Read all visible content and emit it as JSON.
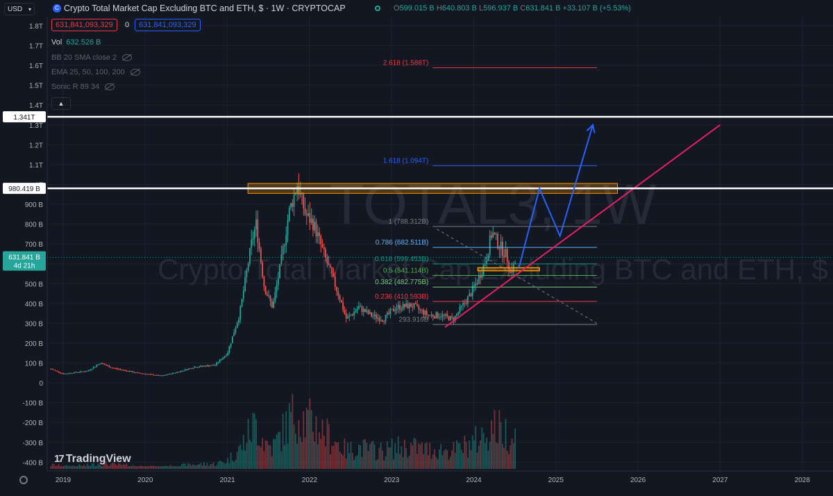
{
  "header": {
    "currency": "USD",
    "symbol_icon": "C",
    "title": "Crypto Total Market Cap Excluding BTC and ETH, $ · 1W · CRYPTOCAP",
    "ohlc": {
      "o_label": "O",
      "o": "599.015 B",
      "h_label": "H",
      "h": "640.803 B",
      "l_label": "L",
      "l": "596.937 B",
      "c_label": "C",
      "c": "631.841 B",
      "change": "+33.107 B (+5.53%)"
    },
    "sell_price": "631,841,093,329",
    "spread": "0",
    "buy_price": "631,841,093,329"
  },
  "indicators": [
    {
      "name": "Vol",
      "value": "632.526 B"
    },
    {
      "name": "BB 20 SMA close 2",
      "value": ""
    },
    {
      "name": "EMA 25, 50, 100, 200",
      "value": ""
    },
    {
      "name": "Sonic R 89 34",
      "value": ""
    }
  ],
  "watermark": {
    "ticker": "TOTAL3, 1W",
    "description": "Crypto Total Market Cap Excluding BTC and ETH, $"
  },
  "branding": {
    "logo_text": "TradingView",
    "logo_mark": "17"
  },
  "colors": {
    "background": "#131722",
    "up": "#26a69a",
    "down": "#ef5350",
    "accent_blue": "#2962ff",
    "trendline": "#e91e63",
    "zone": "#ff9800",
    "level_line": "#ffffff"
  },
  "chart_data": {
    "type": "candlestick",
    "interval": "1W",
    "x_ticks": [
      "2019",
      "2020",
      "2021",
      "2022",
      "2023",
      "2024",
      "2025",
      "2026",
      "2027",
      "2028"
    ],
    "y_ticks": [
      {
        "v": 1800,
        "t": "1.8T"
      },
      {
        "v": 1700,
        "t": "1.7T"
      },
      {
        "v": 1600,
        "t": "1.6T"
      },
      {
        "v": 1500,
        "t": "1.5T"
      },
      {
        "v": 1400,
        "t": "1.4T"
      },
      {
        "v": 1300,
        "t": "1.3T"
      },
      {
        "v": 1200,
        "t": "1.2T"
      },
      {
        "v": 1100,
        "t": "1.1T"
      },
      {
        "v": 1000,
        "t": "1T"
      },
      {
        "v": 900,
        "t": "900 B"
      },
      {
        "v": 800,
        "t": "800 B"
      },
      {
        "v": 700,
        "t": "700 B"
      },
      {
        "v": 600,
        "t": "600 B"
      },
      {
        "v": 500,
        "t": "500 B"
      },
      {
        "v": 400,
        "t": "400 B"
      },
      {
        "v": 300,
        "t": "300 B"
      },
      {
        "v": 200,
        "t": "200 B"
      },
      {
        "v": 100,
        "t": "100 B"
      },
      {
        "v": 0,
        "t": "0"
      },
      {
        "v": -100,
        "t": "-100 B"
      },
      {
        "v": -200,
        "t": "-200 B"
      },
      {
        "v": -300,
        "t": "-300 B"
      },
      {
        "v": -400,
        "t": "-400 B"
      }
    ],
    "price_path": [
      [
        2018.85,
        70
      ],
      [
        2019.0,
        45
      ],
      [
        2019.3,
        60
      ],
      [
        2019.45,
        100
      ],
      [
        2019.6,
        75
      ],
      [
        2019.9,
        50
      ],
      [
        2020.2,
        35
      ],
      [
        2020.4,
        55
      ],
      [
        2020.6,
        80
      ],
      [
        2020.85,
        90
      ],
      [
        2021.0,
        150
      ],
      [
        2021.15,
        350
      ],
      [
        2021.3,
        720
      ],
      [
        2021.35,
        800
      ],
      [
        2021.45,
        480
      ],
      [
        2021.55,
        380
      ],
      [
        2021.65,
        600
      ],
      [
        2021.75,
        860
      ],
      [
        2021.85,
        1000
      ],
      [
        2021.95,
        850
      ],
      [
        2022.05,
        800
      ],
      [
        2022.2,
        620
      ],
      [
        2022.35,
        450
      ],
      [
        2022.45,
        320
      ],
      [
        2022.6,
        380
      ],
      [
        2022.75,
        340
      ],
      [
        2022.9,
        320
      ],
      [
        2023.05,
        380
      ],
      [
        2023.25,
        390
      ],
      [
        2023.45,
        340
      ],
      [
        2023.6,
        340
      ],
      [
        2023.75,
        320
      ],
      [
        2023.85,
        380
      ],
      [
        2023.95,
        440
      ],
      [
        2024.05,
        520
      ],
      [
        2024.15,
        620
      ],
      [
        2024.22,
        760
      ],
      [
        2024.3,
        700
      ],
      [
        2024.4,
        640
      ],
      [
        2024.45,
        560
      ],
      [
        2024.5,
        600
      ],
      [
        2024.52,
        632
      ]
    ],
    "last_price": {
      "value": 631.841,
      "label": "631.841 B",
      "countdown": "4d 21h"
    },
    "horizontal_levels": [
      {
        "value": 1341,
        "label": "1.341T"
      },
      {
        "value": 980.419,
        "label": "980.419 B"
      }
    ],
    "fibonacci": {
      "x_start": 2023.5,
      "x_end": 2025.5,
      "levels": [
        {
          "ratio": "2.618",
          "value": 1588,
          "label": "2.618 (1.588T)",
          "color": "#f23645"
        },
        {
          "ratio": "1.618",
          "value": 1094,
          "label": "1.618 (1.094T)",
          "color": "#2962ff"
        },
        {
          "ratio": "1",
          "value": 788.312,
          "label": "1 (788.312B)",
          "color": "#787b86"
        },
        {
          "ratio": "0.786",
          "value": 682.511,
          "label": "0.786 (682.511B)",
          "color": "#64b5f6"
        },
        {
          "ratio": "0.618",
          "value": 599.453,
          "label": "0.618 (599.453B)",
          "color": "#089981"
        },
        {
          "ratio": "0.5",
          "value": 541.114,
          "label": "0.5 (541.114B)",
          "color": "#4caf50"
        },
        {
          "ratio": "0.382",
          "value": 482.775,
          "label": "0.382 (482.775B)",
          "color": "#81c784"
        },
        {
          "ratio": "0.236",
          "value": 410.593,
          "label": "0.236 (410.593B)",
          "color": "#f23645"
        },
        {
          "ratio": "0",
          "value": 293.916,
          "label": "293.916B",
          "color": "#787b86"
        }
      ]
    },
    "resistance_zone": {
      "x_start": 2021.25,
      "x_end": 2025.75,
      "low": 955,
      "high": 1005
    },
    "support_zone": {
      "x_start": 2024.05,
      "x_end": 2024.8,
      "low": 565,
      "high": 580
    },
    "trendline": {
      "from": [
        2023.65,
        280
      ],
      "to": [
        2027.0,
        1300
      ]
    },
    "dashed_line": {
      "from": [
        2023.55,
        775
      ],
      "to": [
        2025.5,
        300
      ]
    },
    "projection": [
      [
        2024.55,
        580
      ],
      [
        2024.8,
        980
      ],
      [
        2025.05,
        740
      ],
      [
        2025.45,
        1300
      ]
    ]
  }
}
